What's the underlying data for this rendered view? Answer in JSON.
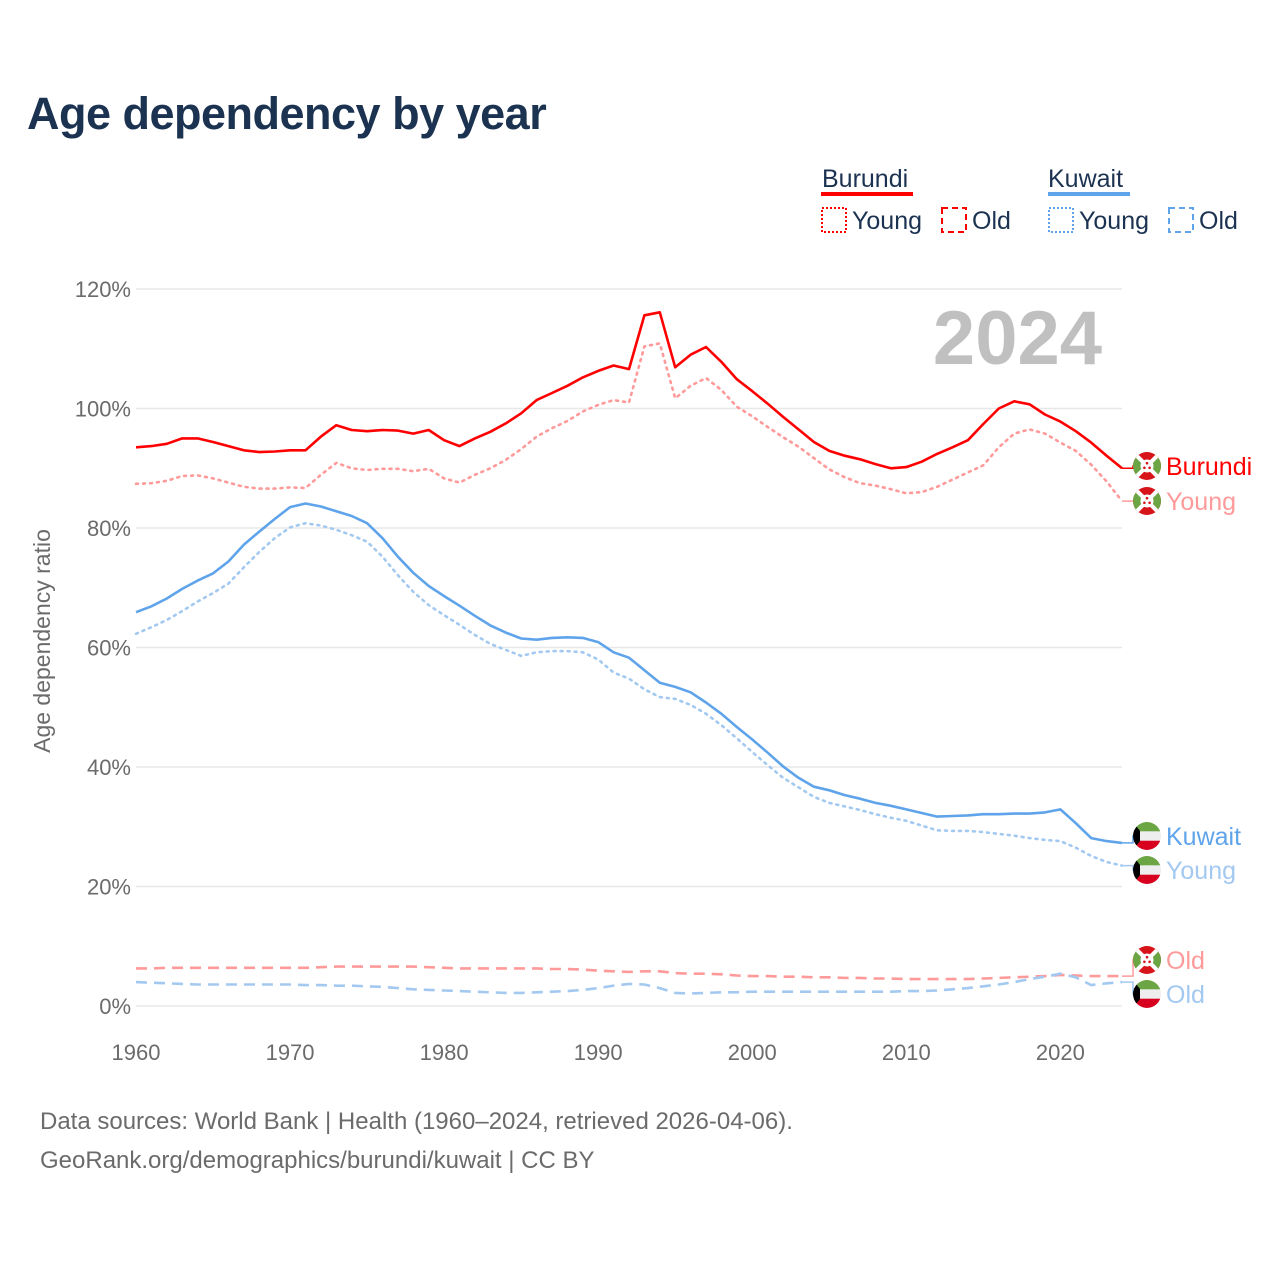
{
  "title": "Age dependency by year",
  "footer": {
    "line1": "Data sources: World Bank | Health (1960–2024, retrieved 2026-04-06).",
    "line2": "GeoRank.org/demographics/burundi/kuwait | CC BY"
  },
  "colors": {
    "burundi": "#ff0000",
    "burundi_light": "#ff9a9a",
    "kuwait": "#5fa4ea",
    "kuwait_light": "#a3c9f1",
    "title": "#1b3251",
    "grid": "#e8e8e8",
    "year": "#c0c0c0"
  },
  "legend": {
    "burundi": {
      "name": "Burundi",
      "young": "Young",
      "old": "Old"
    },
    "kuwait": {
      "name": "Kuwait",
      "young": "Young",
      "old": "Old"
    }
  },
  "year_label": "2024",
  "end_labels": {
    "burundi_total": "Burundi",
    "burundi_young": "Young",
    "burundi_old": "Old",
    "kuwait_total": "Kuwait",
    "kuwait_young": "Young",
    "kuwait_old": "Old"
  },
  "chart_data": {
    "type": "line",
    "title": "Age dependency by year",
    "xlabel": "",
    "ylabel": "Age dependency ratio",
    "xlim": [
      1960,
      2024
    ],
    "ylim": [
      0,
      120
    ],
    "x_ticks": [
      "1960",
      "1970",
      "1980",
      "1990",
      "2000",
      "2010",
      "2020"
    ],
    "y_ticks": [
      "0%",
      "20%",
      "40%",
      "60%",
      "80%",
      "100%",
      "120%"
    ],
    "grid": true,
    "legend_position": "top-right",
    "x": [
      1960,
      1961,
      1962,
      1963,
      1964,
      1965,
      1966,
      1967,
      1968,
      1969,
      1970,
      1971,
      1972,
      1973,
      1974,
      1975,
      1976,
      1977,
      1978,
      1979,
      1980,
      1981,
      1982,
      1983,
      1984,
      1985,
      1986,
      1987,
      1988,
      1989,
      1990,
      1991,
      1992,
      1993,
      1994,
      1995,
      1996,
      1997,
      1998,
      1999,
      2000,
      2001,
      2002,
      2003,
      2004,
      2005,
      2006,
      2007,
      2008,
      2009,
      2010,
      2011,
      2012,
      2013,
      2014,
      2015,
      2016,
      2017,
      2018,
      2019,
      2020,
      2021,
      2022,
      2023,
      2024
    ],
    "series": [
      {
        "name": "Burundi",
        "key": "burundi_total",
        "values": [
          93.5,
          93.7,
          94.1,
          95.0,
          95.0,
          94.4,
          93.7,
          93.0,
          92.7,
          92.8,
          93.0,
          93.0,
          95.3,
          97.2,
          96.4,
          96.2,
          96.4,
          96.3,
          95.8,
          96.4,
          94.7,
          93.7,
          95.0,
          96.1,
          97.5,
          99.2,
          101.4,
          102.6,
          103.8,
          105.2,
          106.3,
          107.2,
          106.6,
          115.6,
          116.1,
          106.9,
          109.0,
          110.3,
          107.8,
          104.9,
          102.9,
          100.8,
          98.6,
          96.5,
          94.4,
          92.9,
          92.1,
          91.5,
          90.7,
          90.0,
          90.2,
          91.1,
          92.4,
          93.5,
          94.7,
          97.4,
          100.0,
          101.2,
          100.7,
          99.0,
          97.8,
          96.2,
          94.3,
          92.1,
          90.0
        ]
      },
      {
        "name": "Burundi Young",
        "key": "burundi_young",
        "values": [
          87.4,
          87.5,
          87.9,
          88.7,
          88.8,
          88.3,
          87.6,
          86.9,
          86.6,
          86.6,
          86.8,
          86.7,
          88.9,
          90.9,
          90.0,
          89.7,
          89.9,
          89.9,
          89.5,
          89.9,
          88.3,
          87.6,
          88.9,
          90.0,
          91.4,
          93.2,
          95.3,
          96.7,
          97.9,
          99.5,
          100.6,
          101.4,
          101.0,
          110.4,
          110.9,
          101.7,
          103.8,
          105.1,
          103.1,
          100.3,
          98.7,
          96.9,
          95.2,
          93.6,
          91.7,
          89.8,
          88.5,
          87.5,
          87.1,
          86.5,
          85.8,
          86.0,
          86.9,
          88.1,
          89.3,
          90.5,
          93.5,
          95.8,
          96.5,
          95.8,
          94.3,
          92.9,
          90.6,
          87.8,
          84.5
        ]
      },
      {
        "name": "Burundi Old",
        "key": "burundi_old",
        "values": [
          6.3,
          6.3,
          6.4,
          6.4,
          6.4,
          6.4,
          6.4,
          6.4,
          6.4,
          6.4,
          6.4,
          6.4,
          6.5,
          6.6,
          6.6,
          6.6,
          6.6,
          6.6,
          6.6,
          6.5,
          6.4,
          6.3,
          6.3,
          6.3,
          6.3,
          6.3,
          6.3,
          6.2,
          6.2,
          6.1,
          5.9,
          5.8,
          5.7,
          5.8,
          5.8,
          5.5,
          5.4,
          5.4,
          5.3,
          5.1,
          5.0,
          5.0,
          4.9,
          4.9,
          4.8,
          4.8,
          4.7,
          4.7,
          4.6,
          4.6,
          4.5,
          4.5,
          4.5,
          4.5,
          4.5,
          4.6,
          4.7,
          4.8,
          4.9,
          5.0,
          5.2,
          5.1,
          5.0,
          5.0,
          5.0
        ]
      },
      {
        "name": "Kuwait",
        "key": "kuwait_total",
        "values": [
          65.9,
          66.9,
          68.2,
          69.8,
          71.2,
          72.4,
          74.4,
          77.2,
          79.4,
          81.5,
          83.5,
          84.1,
          83.6,
          82.8,
          82.0,
          80.8,
          78.3,
          75.2,
          72.5,
          70.3,
          68.6,
          67.0,
          65.3,
          63.7,
          62.5,
          61.5,
          61.3,
          61.6,
          61.7,
          61.6,
          60.9,
          59.2,
          58.3,
          56.2,
          54.1,
          53.4,
          52.5,
          50.8,
          48.9,
          46.7,
          44.6,
          42.4,
          40.1,
          38.2,
          36.7,
          36.1,
          35.3,
          34.7,
          34.0,
          33.5,
          32.9,
          32.3,
          31.7,
          31.8,
          31.9,
          32.1,
          32.1,
          32.2,
          32.2,
          32.4,
          32.9,
          30.6,
          28.1,
          27.6,
          27.3
        ]
      },
      {
        "name": "Kuwait Young",
        "key": "kuwait_young",
        "values": [
          62.3,
          63.4,
          64.6,
          66.1,
          67.7,
          69.1,
          70.7,
          73.4,
          76.0,
          78.3,
          80.1,
          80.8,
          80.4,
          79.7,
          78.8,
          77.7,
          75.2,
          72.1,
          69.3,
          67.1,
          65.4,
          63.8,
          62.1,
          60.6,
          59.6,
          58.6,
          59.2,
          59.4,
          59.4,
          59.2,
          58.0,
          55.8,
          54.8,
          53.0,
          51.7,
          51.4,
          50.4,
          48.9,
          47.0,
          44.8,
          42.5,
          40.3,
          38.2,
          36.6,
          35.0,
          34.0,
          33.4,
          32.8,
          32.1,
          31.5,
          31.0,
          30.2,
          29.4,
          29.3,
          29.3,
          29.1,
          28.8,
          28.5,
          28.1,
          27.8,
          27.6,
          26.5,
          25.1,
          24.1,
          23.5
        ]
      },
      {
        "name": "Kuwait Old",
        "key": "kuwait_old",
        "values": [
          4.0,
          3.9,
          3.8,
          3.7,
          3.6,
          3.6,
          3.6,
          3.6,
          3.6,
          3.6,
          3.6,
          3.5,
          3.5,
          3.4,
          3.4,
          3.3,
          3.2,
          3.0,
          2.8,
          2.7,
          2.6,
          2.5,
          2.4,
          2.3,
          2.2,
          2.2,
          2.3,
          2.4,
          2.5,
          2.7,
          3.0,
          3.4,
          3.7,
          3.6,
          3.0,
          2.2,
          2.1,
          2.2,
          2.3,
          2.3,
          2.4,
          2.4,
          2.4,
          2.4,
          2.4,
          2.4,
          2.4,
          2.4,
          2.4,
          2.4,
          2.5,
          2.5,
          2.6,
          2.8,
          3.0,
          3.3,
          3.6,
          4.0,
          4.5,
          4.9,
          5.4,
          4.8,
          3.5,
          3.8,
          4.0
        ]
      }
    ]
  }
}
